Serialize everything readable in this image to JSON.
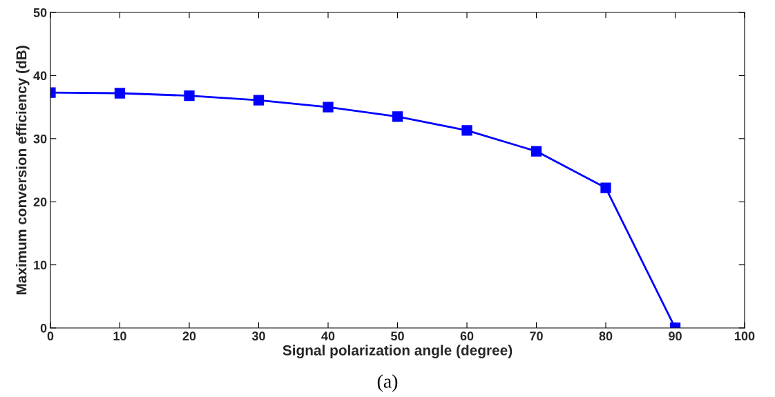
{
  "chart_data": {
    "type": "line",
    "xlabel": "Signal polarization angle (degree)",
    "ylabel": "Maximum conversion efficiency (dB)",
    "x": [
      0,
      10,
      20,
      30,
      40,
      50,
      60,
      70,
      80,
      90
    ],
    "series": [
      {
        "color": "#0000ff",
        "values": [
          37.3,
          37.2,
          36.8,
          36.1,
          35.0,
          33.5,
          31.3,
          28.0,
          22.2,
          0
        ]
      }
    ],
    "marker": "square",
    "line_style": "solid",
    "xlim": [
      0,
      100
    ],
    "xticks": [
      0,
      10,
      20,
      30,
      40,
      50,
      60,
      70,
      80,
      90,
      100
    ],
    "ylim": [
      0,
      50
    ],
    "yticks": [
      0,
      10,
      20,
      30,
      40,
      50
    ],
    "grid": false,
    "legend": false,
    "annotations": [
      "(a)"
    ]
  }
}
